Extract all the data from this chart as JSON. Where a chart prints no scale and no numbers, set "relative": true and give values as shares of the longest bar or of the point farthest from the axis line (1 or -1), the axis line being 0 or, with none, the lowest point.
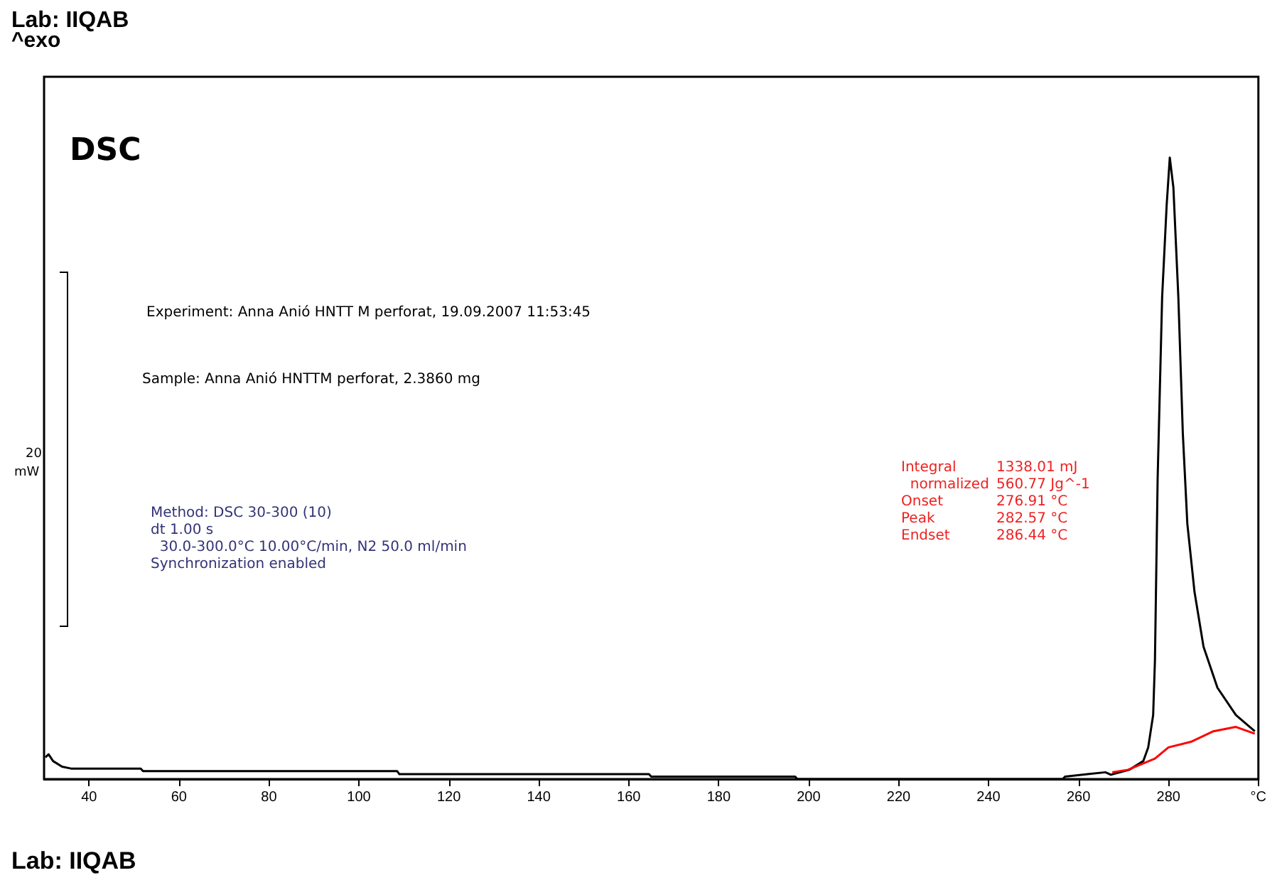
{
  "chart_data": {
    "type": "line",
    "title": "DSC",
    "relative": true,
    "marker": "none",
    "line_style": "solid",
    "grid": false,
    "tick_labels": "x",
    "xlim": [
      30,
      300
    ],
    "xticks": [
      40,
      60,
      80,
      100,
      120,
      140,
      160,
      180,
      200,
      220,
      240,
      260,
      280,
      {
        "value": 300,
        "label": "°C"
      }
    ],
    "series": [
      {
        "color": "#000000",
        "x": [
          30.3,
          31,
          32,
          34,
          36,
          51.5,
          52,
          108.5,
          109,
          164.5,
          165,
          197,
          197.5,
          256.5,
          257,
          262,
          266,
          267.2,
          271.3,
          274.4,
          275.5,
          276.6,
          277,
          277.6,
          278.6,
          279.6,
          280.3,
          281.1,
          282.2,
          283.2,
          284.2,
          285.8,
          287.8,
          290.9,
          295,
          299.2
        ],
        "values": [
          0.035,
          0.04,
          0.029,
          0.02,
          0.017,
          0.017,
          0.013,
          0.013,
          0.008,
          0.008,
          0.004,
          0.004,
          0,
          0,
          0.004,
          0.008,
          0.011,
          0.007,
          0.015,
          0.029,
          0.051,
          0.103,
          0.191,
          0.484,
          0.776,
          0.923,
          1,
          0.952,
          0.776,
          0.556,
          0.411,
          0.301,
          0.213,
          0.147,
          0.103,
          0.077
        ]
      },
      {
        "color": "#ff0000",
        "x": [
          267.5,
          271,
          277,
          280,
          285,
          290,
          295,
          299.2
        ],
        "values": [
          0.011,
          0.015,
          0.033,
          0.051,
          0.06,
          0.077,
          0.084,
          0.073
        ]
      }
    ],
    "annotations": [
      "Lab: IIQAB",
      "^exo",
      "Lab: IIQAB",
      "20",
      "mW",
      "Experiment: Anna Anió HNTT M perforat, 19.09.2007 11:53:45",
      "Sample: Anna Anió HNTTM perforat, 2.3860 mg",
      "Method: DSC 30-300 (10)",
      "dt 1.00 s",
      "  30.0-300.0°C 10.00°C/min, N2 50.0 ml/min",
      "Synchronization enabled",
      "Integral",
      "1338.01 mJ",
      "  normalized",
      "560.77 Jg^-1",
      "Onset",
      "276.91 °C",
      "Peak",
      "282.57 °C",
      "Endset",
      "286.44 °C"
    ]
  }
}
